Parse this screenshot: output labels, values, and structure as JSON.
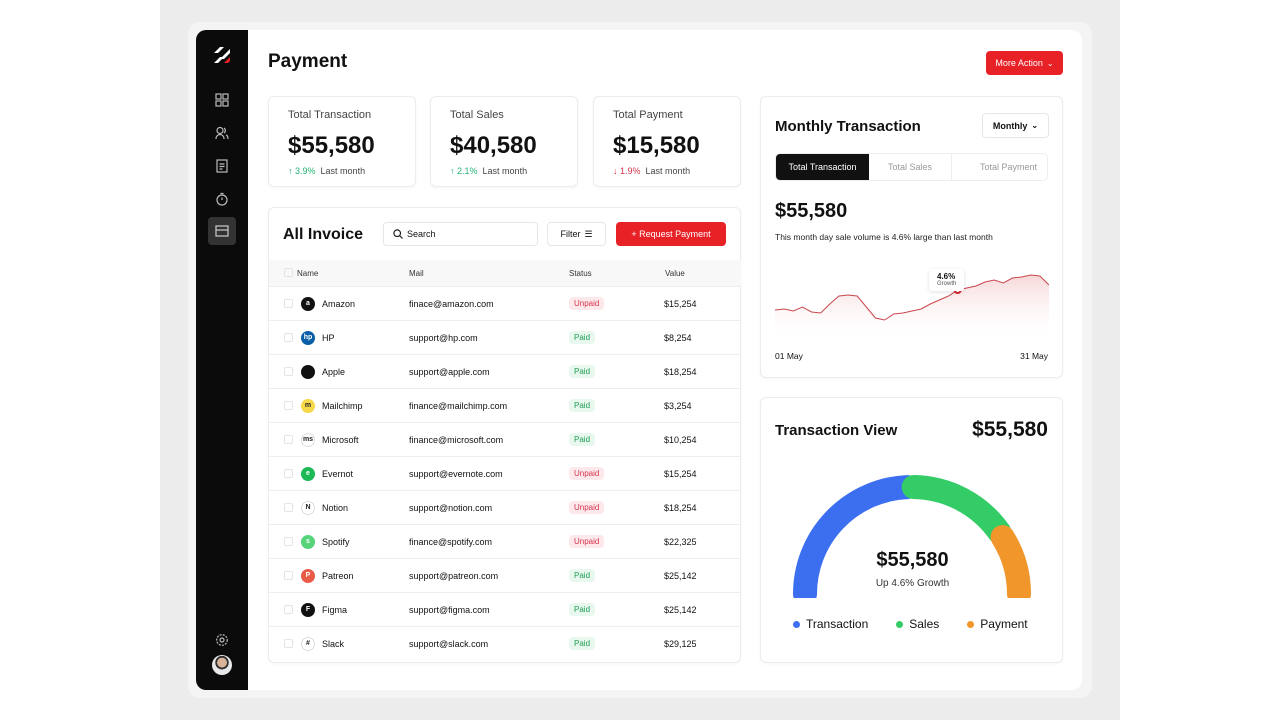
{
  "header": {
    "title": "Payment",
    "more_action": "More Action"
  },
  "stats": [
    {
      "title": "Total Transaction",
      "value": "$55,580",
      "change": "3.9%",
      "direction": "up",
      "period": "Last month"
    },
    {
      "title": "Total Sales",
      "value": "$40,580",
      "change": "2.1%",
      "direction": "up",
      "period": "Last month"
    },
    {
      "title": "Total Payment",
      "value": "$15,580",
      "change": "1.9%",
      "direction": "down",
      "period": "Last month"
    }
  ],
  "invoice": {
    "title": "All Invoice",
    "search_placeholder": "Search",
    "filter": "Filter",
    "request": "+ Request Payment",
    "columns": [
      "Name",
      "Mail",
      "Status",
      "Value"
    ],
    "rows": [
      {
        "name": "Amazon",
        "mail": "finace@amazon.com",
        "status": "Unpaid",
        "value": "$15,254",
        "logo": "a",
        "color": "#111"
      },
      {
        "name": "HP",
        "mail": "support@hp.com",
        "status": "Paid",
        "value": "$8,254",
        "logo": "hp",
        "color": "#0a5fa8"
      },
      {
        "name": "Apple",
        "mail": "support@apple.com",
        "status": "Paid",
        "value": "$18,254",
        "logo": "",
        "color": "#111"
      },
      {
        "name": "Mailchimp",
        "mail": "finance@mailchimp.com",
        "status": "Paid",
        "value": "$3,254",
        "logo": "m",
        "color": "#f5d94a"
      },
      {
        "name": "Microsoft",
        "mail": "finance@microsoft.com",
        "status": "Paid",
        "value": "$10,254",
        "logo": "ms",
        "color": "#fff"
      },
      {
        "name": "Evernot",
        "mail": "support@evernote.com",
        "status": "Unpaid",
        "value": "$15,254",
        "logo": "e",
        "color": "#1db954"
      },
      {
        "name": "Notion",
        "mail": "support@notion.com",
        "status": "Unpaid",
        "value": "$18,254",
        "logo": "N",
        "color": "#fff"
      },
      {
        "name": "Spotify",
        "mail": "finance@spotify.com",
        "status": "Unpaid",
        "value": "$22,325",
        "logo": "s",
        "color": "#57d37a"
      },
      {
        "name": "Patreon",
        "mail": "support@patreon.com",
        "status": "Paid",
        "value": "$25,142",
        "logo": "P",
        "color": "#e85b46"
      },
      {
        "name": "Figma",
        "mail": "support@figma.com",
        "status": "Paid",
        "value": "$25,142",
        "logo": "F",
        "color": "#111"
      },
      {
        "name": "Slack",
        "mail": "support@slack.com",
        "status": "Paid",
        "value": "$29,125",
        "logo": "#",
        "color": "#fff"
      }
    ]
  },
  "monthly": {
    "title": "Monthly Transaction",
    "dropdown": "Monthly",
    "tabs": [
      "Total Transaction",
      "Total Sales",
      "Total Payment"
    ],
    "active_tab": 0,
    "value": "$55,580",
    "description": "This month day sale volume is 4.6% large than last month",
    "tooltip_value": "4.6%",
    "tooltip_label": "Growth",
    "x_start": "01 May",
    "x_end": "31 May",
    "series": [
      52,
      53,
      51,
      55,
      50,
      49,
      58,
      66,
      67,
      66,
      55,
      44,
      42,
      48,
      49,
      51,
      53,
      58,
      62,
      66,
      72,
      74,
      76,
      80,
      82,
      79,
      84,
      85,
      87,
      86,
      77
    ]
  },
  "view": {
    "title": "Transaction View",
    "total": "$55,580",
    "center_value": "$55,580",
    "center_label": "Up 4.6% Growth",
    "segments": [
      {
        "label": "Transaction",
        "share": 0.49,
        "color": "#3b6ff0"
      },
      {
        "label": "Sales",
        "share": 0.3,
        "color": "#33cc66"
      },
      {
        "label": "Payment",
        "share": 0.18,
        "color": "#f0962a"
      }
    ]
  },
  "colors": {
    "accent": "#e82127",
    "sidebar": "#0b0b0b"
  }
}
